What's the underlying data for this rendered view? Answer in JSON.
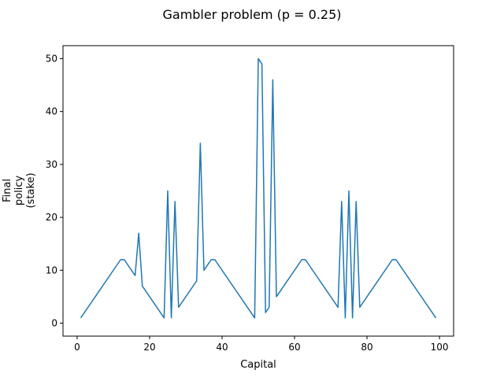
{
  "chart_data": {
    "type": "line",
    "title": "Gambler problem (p = 0.25)",
    "xlabel": "Capital",
    "ylabel_lines": [
      "Final",
      "policy",
      "(stake)"
    ],
    "xlim": [
      -3.9,
      103.9
    ],
    "ylim": [
      -2.45,
      52.45
    ],
    "xticks": [
      0,
      20,
      40,
      60,
      80,
      100
    ],
    "yticks": [
      0,
      10,
      20,
      30,
      40,
      50
    ],
    "grid": false,
    "series": [
      {
        "color": "#1f77b4",
        "points": [
          [
            1,
            1
          ],
          [
            12,
            12
          ],
          [
            13,
            12
          ],
          [
            16,
            9
          ],
          [
            17,
            17
          ],
          [
            18,
            7
          ],
          [
            24,
            1
          ],
          [
            25,
            25
          ],
          [
            26,
            1
          ],
          [
            27,
            23
          ],
          [
            28,
            3
          ],
          [
            33,
            8
          ],
          [
            34,
            34
          ],
          [
            35,
            10
          ],
          [
            37,
            12
          ],
          [
            38,
            12
          ],
          [
            49,
            1
          ],
          [
            50,
            50
          ],
          [
            51,
            49
          ],
          [
            52,
            2
          ],
          [
            53,
            3
          ],
          [
            54,
            46
          ],
          [
            55,
            5
          ],
          [
            62,
            12
          ],
          [
            63,
            12
          ],
          [
            72,
            3
          ],
          [
            73,
            23
          ],
          [
            74,
            1
          ],
          [
            75,
            25
          ],
          [
            76,
            1
          ],
          [
            77,
            23
          ],
          [
            78,
            3
          ],
          [
            87,
            12
          ],
          [
            88,
            12
          ],
          [
            99,
            1
          ]
        ]
      }
    ]
  }
}
